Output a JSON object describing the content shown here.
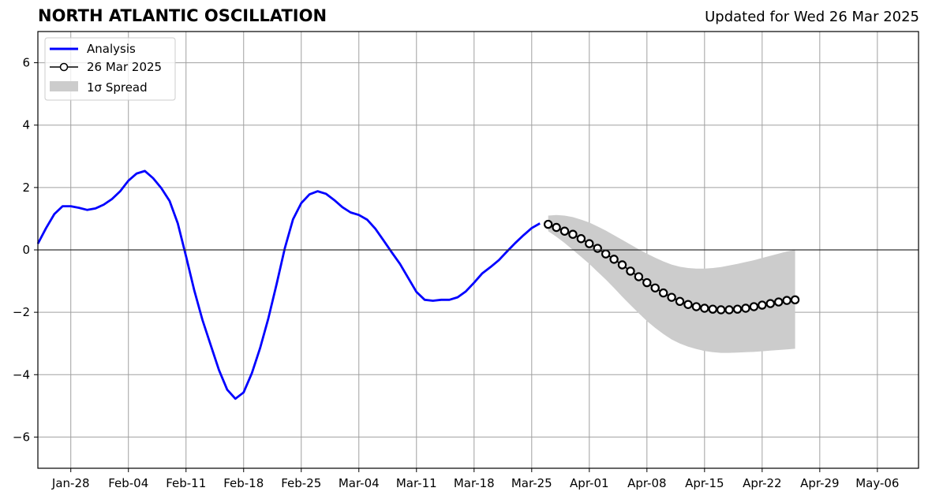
{
  "chart_data": {
    "type": "line",
    "title": "NORTH ATLANTIC OSCILLATION",
    "subtitle": "Updated for Wed 26 Mar 2025",
    "xlabel": "",
    "ylabel": "",
    "ylim": [
      -7,
      7
    ],
    "xlim": [
      "2025-01-24",
      "2025-05-11"
    ],
    "yticks": [
      -6,
      -4,
      -2,
      0,
      2,
      4,
      6
    ],
    "ytick_labels": [
      "−6",
      "−4",
      "−2",
      "0",
      "2",
      "4",
      "6"
    ],
    "xticks": [
      "2025-01-28",
      "2025-02-04",
      "2025-02-11",
      "2025-02-18",
      "2025-02-25",
      "2025-03-04",
      "2025-03-11",
      "2025-03-18",
      "2025-03-25",
      "2025-04-01",
      "2025-04-08",
      "2025-04-15",
      "2025-04-22",
      "2025-04-29",
      "2025-05-06"
    ],
    "xtick_labels": [
      "Jan-28",
      "Feb-04",
      "Feb-11",
      "Feb-18",
      "Feb-25",
      "Mar-04",
      "Mar-11",
      "Mar-18",
      "Mar-25",
      "Apr-01",
      "Apr-08",
      "Apr-15",
      "Apr-22",
      "Apr-29",
      "May-06"
    ],
    "grid": true,
    "zero_line": true,
    "legend_position": "top-left",
    "legend": [
      "Analysis",
      "26 Mar 2025",
      "1σ Spread"
    ],
    "series": [
      {
        "name": "Analysis",
        "color": "#0000ff",
        "style": "line",
        "x": [
          "2025-01-24",
          "2025-01-25",
          "2025-01-26",
          "2025-01-27",
          "2025-01-28",
          "2025-01-29",
          "2025-01-30",
          "2025-01-31",
          "2025-02-01",
          "2025-02-02",
          "2025-02-03",
          "2025-02-04",
          "2025-02-05",
          "2025-02-06",
          "2025-02-07",
          "2025-02-08",
          "2025-02-09",
          "2025-02-10",
          "2025-02-11",
          "2025-02-12",
          "2025-02-13",
          "2025-02-14",
          "2025-02-15",
          "2025-02-16",
          "2025-02-17",
          "2025-02-18",
          "2025-02-19",
          "2025-02-20",
          "2025-02-21",
          "2025-02-22",
          "2025-02-23",
          "2025-02-24",
          "2025-02-25",
          "2025-02-26",
          "2025-02-27",
          "2025-02-28",
          "2025-03-01",
          "2025-03-02",
          "2025-03-03",
          "2025-03-04",
          "2025-03-05",
          "2025-03-06",
          "2025-03-07",
          "2025-03-08",
          "2025-03-09",
          "2025-03-10",
          "2025-03-11",
          "2025-03-12",
          "2025-03-13",
          "2025-03-14",
          "2025-03-15",
          "2025-03-16",
          "2025-03-17",
          "2025-03-18",
          "2025-03-19",
          "2025-03-20",
          "2025-03-21",
          "2025-03-22",
          "2025-03-23",
          "2025-03-24",
          "2025-03-25",
          "2025-03-26"
        ],
        "values": [
          0.2,
          0.7,
          1.15,
          1.4,
          1.4,
          1.35,
          1.28,
          1.33,
          1.45,
          1.63,
          1.88,
          2.22,
          2.45,
          2.53,
          2.3,
          1.98,
          1.57,
          0.85,
          -0.2,
          -1.3,
          -2.25,
          -3.05,
          -3.85,
          -4.48,
          -4.77,
          -4.57,
          -3.95,
          -3.15,
          -2.2,
          -1.1,
          0.05,
          0.98,
          1.5,
          1.78,
          1.88,
          1.8,
          1.6,
          1.37,
          1.2,
          1.12,
          0.97,
          0.68,
          0.3,
          -0.08,
          -0.45,
          -0.9,
          -1.35,
          -1.6,
          -1.63,
          -1.6,
          -1.6,
          -1.52,
          -1.33,
          -1.05,
          -0.75,
          -0.55,
          -0.33,
          -0.05,
          0.22,
          0.47,
          0.7,
          0.85
        ]
      },
      {
        "name": "26 Mar 2025",
        "color": "#000000",
        "marker_fill": "#ffffff",
        "style": "line-markers",
        "x": [
          "2025-03-27",
          "2025-03-28",
          "2025-03-29",
          "2025-03-30",
          "2025-03-31",
          "2025-04-01",
          "2025-04-02",
          "2025-04-03",
          "2025-04-04",
          "2025-04-05",
          "2025-04-06",
          "2025-04-07",
          "2025-04-08",
          "2025-04-09",
          "2025-04-10",
          "2025-04-11",
          "2025-04-12",
          "2025-04-13",
          "2025-04-14",
          "2025-04-15",
          "2025-04-16",
          "2025-04-17",
          "2025-04-18",
          "2025-04-19",
          "2025-04-20",
          "2025-04-21",
          "2025-04-22",
          "2025-04-23",
          "2025-04-24",
          "2025-04-25",
          "2025-04-26"
        ],
        "values": [
          0.82,
          0.72,
          0.6,
          0.5,
          0.36,
          0.2,
          0.05,
          -0.13,
          -0.3,
          -0.48,
          -0.68,
          -0.86,
          -1.05,
          -1.22,
          -1.38,
          -1.52,
          -1.65,
          -1.75,
          -1.82,
          -1.87,
          -1.9,
          -1.92,
          -1.92,
          -1.9,
          -1.87,
          -1.82,
          -1.77,
          -1.72,
          -1.67,
          -1.62,
          -1.6
        ]
      }
    ],
    "spread": {
      "name": "1σ Spread",
      "color": "#cccccc",
      "x": [
        "2025-03-27",
        "2025-03-28",
        "2025-03-29",
        "2025-03-30",
        "2025-03-31",
        "2025-04-01",
        "2025-04-02",
        "2025-04-03",
        "2025-04-04",
        "2025-04-05",
        "2025-04-06",
        "2025-04-07",
        "2025-04-08",
        "2025-04-09",
        "2025-04-10",
        "2025-04-11",
        "2025-04-12",
        "2025-04-13",
        "2025-04-14",
        "2025-04-15",
        "2025-04-16",
        "2025-04-17",
        "2025-04-18",
        "2025-04-19",
        "2025-04-20",
        "2025-04-21",
        "2025-04-22",
        "2025-04-23",
        "2025-04-24",
        "2025-04-25",
        "2025-04-26"
      ],
      "upper": [
        1.1,
        1.12,
        1.1,
        1.05,
        0.97,
        0.88,
        0.75,
        0.62,
        0.47,
        0.32,
        0.17,
        0.02,
        -0.12,
        -0.25,
        -0.37,
        -0.47,
        -0.54,
        -0.58,
        -0.6,
        -0.6,
        -0.58,
        -0.55,
        -0.5,
        -0.45,
        -0.39,
        -0.33,
        -0.26,
        -0.19,
        -0.12,
        -0.05,
        0.0
      ],
      "lower": [
        0.6,
        0.42,
        0.22,
        0.0,
        -0.22,
        -0.45,
        -0.7,
        -0.95,
        -1.22,
        -1.5,
        -1.77,
        -2.03,
        -2.28,
        -2.5,
        -2.7,
        -2.87,
        -3.0,
        -3.1,
        -3.18,
        -3.24,
        -3.28,
        -3.3,
        -3.3,
        -3.29,
        -3.28,
        -3.27,
        -3.25,
        -3.23,
        -3.21,
        -3.19,
        -3.17
      ]
    }
  }
}
